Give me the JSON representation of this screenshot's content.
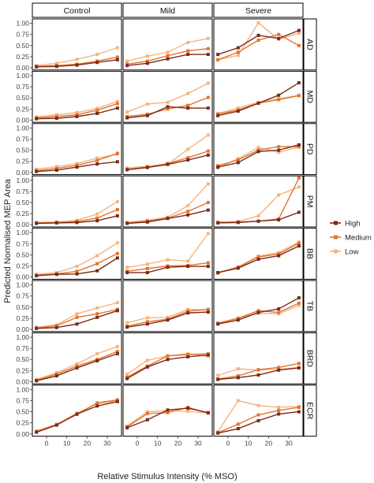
{
  "chart_data": {
    "type": "line",
    "xlabel": "Relative Stimulus Intensity (% MSO)",
    "ylabel": "Predicted Normalised MEP Area",
    "x": [
      -5,
      5,
      15,
      25,
      35
    ],
    "xlim": [
      -7,
      37
    ],
    "ylim": [
      -0.05,
      1.1
    ],
    "x_ticks": [
      "0",
      "10",
      "20",
      "30"
    ],
    "y_ticks": [
      "0.00",
      "0.25",
      "0.50",
      "0.75",
      "1.00"
    ],
    "columns": [
      "Control",
      "Mild",
      "Severe"
    ],
    "rows": [
      "AD",
      "MD",
      "PD",
      "PM",
      "BB",
      "TB",
      "BRD",
      "ECR"
    ],
    "grid": false,
    "legend_position": "right",
    "series": [
      {
        "name": "High",
        "color": "#7b2a17"
      },
      {
        "name": "Medium",
        "color": "#e4742f"
      },
      {
        "name": "Low",
        "color": "#f6b47f"
      }
    ],
    "panels": {
      "AD": {
        "Control": {
          "High": [
            0.02,
            0.03,
            0.06,
            0.12,
            0.18
          ],
          "Medium": [
            0.03,
            0.05,
            0.08,
            0.15,
            0.24
          ],
          "Low": [
            0.05,
            0.1,
            0.19,
            0.3,
            0.45
          ]
        },
        "Mild": {
          "High": [
            0.05,
            0.1,
            0.2,
            0.3,
            0.3
          ],
          "Medium": [
            0.08,
            0.15,
            0.27,
            0.38,
            0.43
          ],
          "Low": [
            0.15,
            0.26,
            0.35,
            0.57,
            0.66
          ]
        },
        "Severe": {
          "High": [
            0.3,
            0.45,
            0.73,
            0.66,
            0.84
          ],
          "Medium": [
            0.18,
            0.35,
            0.62,
            0.75,
            0.5
          ],
          "Low": [
            0.18,
            0.28,
            1.01,
            0.64,
            0.78
          ]
        }
      },
      "MD": {
        "Control": {
          "High": [
            0.03,
            0.04,
            0.08,
            0.15,
            0.27
          ],
          "Medium": [
            0.05,
            0.08,
            0.12,
            0.22,
            0.37
          ],
          "Low": [
            0.07,
            0.12,
            0.17,
            0.26,
            0.42
          ]
        },
        "Mild": {
          "High": [
            0.05,
            0.1,
            0.3,
            0.27,
            0.27
          ],
          "Medium": [
            0.08,
            0.13,
            0.25,
            0.33,
            0.51
          ],
          "Low": [
            0.18,
            0.36,
            0.4,
            0.6,
            0.83
          ]
        },
        "Severe": {
          "High": [
            0.1,
            0.2,
            0.38,
            0.56,
            0.84
          ],
          "Medium": [
            0.13,
            0.23,
            0.38,
            0.46,
            0.55
          ],
          "Low": [
            0.15,
            0.27,
            0.4,
            0.48,
            0.56
          ]
        }
      },
      "PD": {
        "Control": {
          "High": [
            0.02,
            0.05,
            0.12,
            0.19,
            0.24
          ],
          "Medium": [
            0.04,
            0.09,
            0.16,
            0.27,
            0.43
          ],
          "Low": [
            0.07,
            0.13,
            0.2,
            0.32,
            0.41
          ]
        },
        "Mild": {
          "High": [
            0.06,
            0.11,
            0.18,
            0.28,
            0.39
          ],
          "Medium": [
            0.07,
            0.12,
            0.2,
            0.33,
            0.48
          ],
          "Low": [
            0.1,
            0.14,
            0.18,
            0.52,
            0.84
          ]
        },
        "Severe": {
          "High": [
            0.12,
            0.22,
            0.47,
            0.5,
            0.62
          ],
          "Medium": [
            0.15,
            0.28,
            0.5,
            0.58,
            0.58
          ],
          "Low": [
            0.1,
            0.31,
            0.56,
            0.45,
            0.57
          ]
        }
      },
      "PM": {
        "Control": {
          "High": [
            0.03,
            0.04,
            0.05,
            0.09,
            0.2
          ],
          "Medium": [
            0.04,
            0.05,
            0.07,
            0.15,
            0.34
          ],
          "Low": [
            0.05,
            0.06,
            0.1,
            0.24,
            0.52
          ]
        },
        "Mild": {
          "High": [
            0.03,
            0.06,
            0.14,
            0.22,
            0.33
          ],
          "Medium": [
            0.04,
            0.08,
            0.15,
            0.3,
            0.5
          ],
          "Low": [
            0.05,
            0.1,
            0.17,
            0.43,
            0.92
          ]
        },
        "Severe": {
          "High": [
            0.04,
            0.05,
            0.08,
            0.11,
            0.28
          ],
          "Medium": [
            0.05,
            0.06,
            0.08,
            0.13,
            1.05
          ],
          "Low": [
            0.06,
            0.07,
            0.2,
            0.67,
            0.85
          ]
        }
      },
      "BB": {
        "Control": {
          "High": [
            0.03,
            0.06,
            0.07,
            0.14,
            0.43
          ],
          "Medium": [
            0.04,
            0.07,
            0.13,
            0.3,
            0.53
          ],
          "Low": [
            0.06,
            0.1,
            0.24,
            0.48,
            0.77
          ]
        },
        "Mild": {
          "High": [
            0.1,
            0.1,
            0.22,
            0.24,
            0.24
          ],
          "Medium": [
            0.13,
            0.19,
            0.25,
            0.26,
            0.32
          ],
          "Low": [
            0.22,
            0.29,
            0.39,
            0.36,
            0.98
          ]
        },
        "Severe": {
          "High": [
            0.1,
            0.2,
            0.4,
            0.48,
            0.7
          ],
          "Medium": [
            0.09,
            0.22,
            0.45,
            0.52,
            0.76
          ],
          "Low": [
            0.1,
            0.23,
            0.47,
            0.55,
            0.79
          ]
        }
      },
      "TB": {
        "Control": {
          "High": [
            0.02,
            0.04,
            0.12,
            0.27,
            0.42
          ],
          "Medium": [
            0.03,
            0.08,
            0.27,
            0.35,
            0.45
          ],
          "Low": [
            0.05,
            0.1,
            0.35,
            0.48,
            0.6
          ]
        },
        "Mild": {
          "High": [
            0.05,
            0.12,
            0.21,
            0.37,
            0.39
          ],
          "Medium": [
            0.07,
            0.17,
            0.23,
            0.41,
            0.45
          ],
          "Low": [
            0.15,
            0.26,
            0.27,
            0.45,
            0.44
          ]
        },
        "Severe": {
          "High": [
            0.12,
            0.21,
            0.38,
            0.46,
            0.71
          ],
          "Medium": [
            0.13,
            0.25,
            0.42,
            0.38,
            0.59
          ],
          "Low": [
            0.15,
            0.25,
            0.36,
            0.35,
            0.54
          ]
        }
      },
      "BRD": {
        "Control": {
          "High": [
            0.02,
            0.13,
            0.31,
            0.47,
            0.63
          ],
          "Medium": [
            0.03,
            0.17,
            0.35,
            0.5,
            0.68
          ],
          "Low": [
            0.05,
            0.2,
            0.4,
            0.63,
            0.79
          ]
        },
        "Mild": {
          "High": [
            0.07,
            0.33,
            0.5,
            0.56,
            0.6
          ],
          "Medium": [
            0.1,
            0.35,
            0.58,
            0.61,
            0.63
          ],
          "Low": [
            0.17,
            0.48,
            0.58,
            0.63,
            0.57
          ]
        },
        "Severe": {
          "High": [
            0.05,
            0.09,
            0.15,
            0.26,
            0.31
          ],
          "Medium": [
            0.06,
            0.13,
            0.27,
            0.32,
            0.41
          ],
          "Low": [
            0.14,
            0.29,
            0.26,
            0.28,
            0.32
          ]
        }
      },
      "ECR": {
        "Control": {
          "High": [
            0.04,
            0.2,
            0.45,
            0.63,
            0.73
          ],
          "Medium": [
            0.05,
            0.21,
            0.44,
            0.7,
            0.77
          ],
          "Low": [
            0.07,
            0.22,
            0.47,
            0.68,
            0.75
          ]
        },
        "Mild": {
          "High": [
            0.14,
            0.32,
            0.54,
            0.58,
            0.48
          ],
          "Medium": [
            0.16,
            0.46,
            0.48,
            0.6,
            0.47
          ],
          "Low": [
            0.18,
            0.5,
            0.53,
            0.51,
            0.47
          ]
        },
        "Severe": {
          "High": [
            0.02,
            0.12,
            0.3,
            0.45,
            0.5
          ],
          "Medium": [
            0.03,
            0.22,
            0.43,
            0.53,
            0.6
          ],
          "Low": [
            0.05,
            0.75,
            0.64,
            0.6,
            0.62
          ]
        }
      }
    }
  }
}
